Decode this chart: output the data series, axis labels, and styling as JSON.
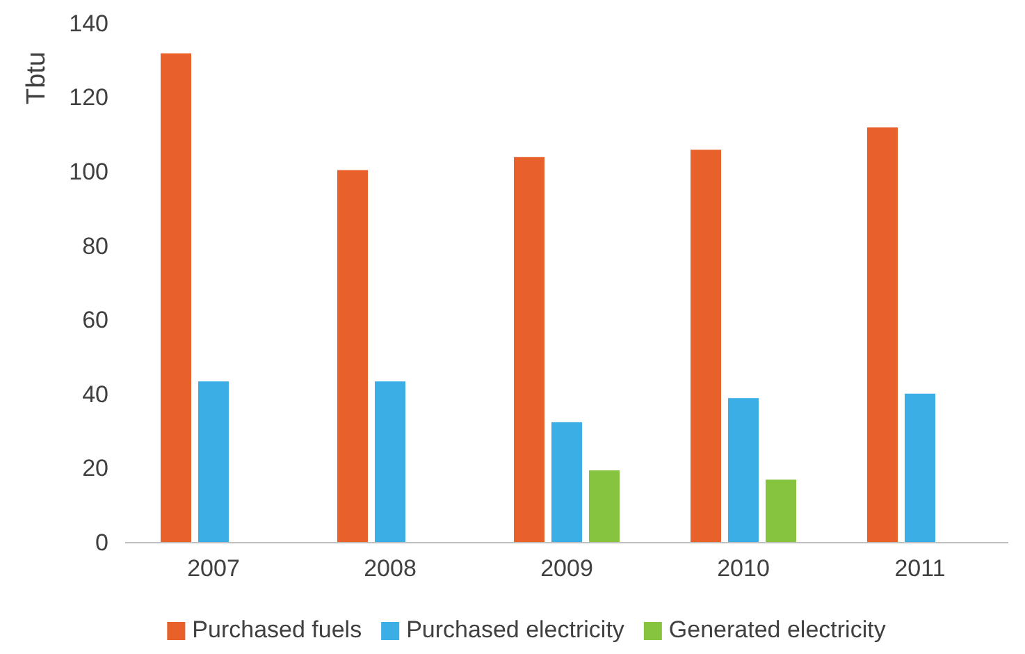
{
  "chart_data": {
    "type": "bar",
    "ylabel": "Tbtu",
    "categories": [
      "2007",
      "2008",
      "2009",
      "2010",
      "2011"
    ],
    "series": [
      {
        "name": "Purchased fuels",
        "color": "#e8602a",
        "values": [
          132,
          100.5,
          104,
          106,
          112
        ]
      },
      {
        "name": "Purchased electricity",
        "color": "#3baee6",
        "values": [
          43.5,
          43.5,
          32.5,
          39,
          40.2
        ]
      },
      {
        "name": "Generated electricity",
        "color": "#86c440",
        "values": [
          null,
          null,
          19.5,
          17,
          null
        ]
      }
    ],
    "ylim": [
      0,
      140
    ],
    "yticks": [
      0,
      20,
      40,
      60,
      80,
      100,
      120,
      140
    ],
    "grid": false,
    "legend": "bottom"
  }
}
